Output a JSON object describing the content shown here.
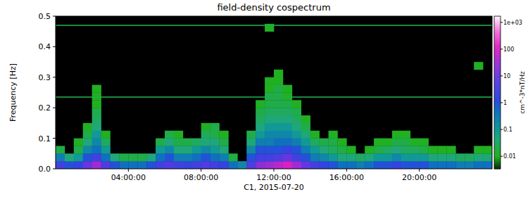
{
  "chart_data": {
    "type": "heatmap",
    "title": "field-density cospectrum",
    "xlabel": "C1, 2015-07-20",
    "ylabel": "Frequency [Hz]",
    "xlim": [
      0,
      24
    ],
    "xticks": [
      {
        "value": 4,
        "label": "04:00:00"
      },
      {
        "value": 8,
        "label": "08:00:00"
      },
      {
        "value": 12,
        "label": "12:00:00"
      },
      {
        "value": 16,
        "label": "16:00:00"
      },
      {
        "value": 20,
        "label": "20:00:00"
      }
    ],
    "ylim": [
      0,
      0.5
    ],
    "yticks": [
      {
        "value": 0,
        "label": "0.0"
      },
      0.1,
      0.2,
      0.3,
      0.4,
      0.5
    ],
    "grid": false,
    "x_edges": [
      0,
      0.5,
      1,
      1.5,
      2,
      2.5,
      3,
      3.5,
      4,
      4.5,
      5,
      5.5,
      6,
      6.5,
      7,
      7.5,
      8,
      8.5,
      9,
      9.5,
      10,
      10.5,
      11,
      11.5,
      12,
      12.5,
      13,
      13.5,
      14,
      14.5,
      15,
      15.5,
      16,
      16.5,
      17,
      17.5,
      18,
      18.5,
      19,
      19.5,
      20,
      20.5,
      21,
      21.5,
      22,
      22.5,
      23,
      23.5,
      24
    ],
    "y_edges": [
      0,
      0.025,
      0.05,
      0.075,
      0.1,
      0.125,
      0.15,
      0.175,
      0.2,
      0.225,
      0.25,
      0.275,
      0.3,
      0.325,
      0.35,
      0.375,
      0.4,
      0.425,
      0.45,
      0.475,
      0.5
    ],
    "cells": [
      [
        3,
        1,
        2,
        10,
        30,
        5,
        1,
        0.5,
        0.5,
        0.5,
        1,
        3,
        5,
        3,
        2,
        3,
        5,
        3,
        2,
        0.5,
        0.2,
        5,
        20,
        30,
        50,
        100,
        30,
        10,
        3,
        2,
        1,
        0.5,
        0.5,
        0.3,
        0.5,
        1,
        1,
        2,
        1,
        1,
        1,
        0.5,
        0.5,
        0.5,
        0.3,
        0.3,
        0.5,
        0.5
      ],
      [
        0.3,
        0.05,
        0.1,
        1,
        3,
        0.5,
        0.05,
        0.02,
        0.02,
        0.02,
        0.05,
        0.5,
        1,
        0.3,
        0.3,
        0.5,
        1,
        0.5,
        0.3,
        0.02,
        null,
        1,
        3,
        3,
        5,
        10,
        3,
        1,
        0.3,
        0.2,
        0.1,
        0.05,
        0.05,
        0.03,
        0.05,
        0.1,
        0.1,
        0.2,
        0.1,
        0.1,
        0.1,
        0.05,
        0.05,
        0.05,
        0.03,
        0.03,
        0.05,
        0.05
      ],
      [
        0.02,
        null,
        0.02,
        0.2,
        0.5,
        0.1,
        null,
        null,
        null,
        null,
        null,
        0.1,
        0.2,
        0.05,
        0.05,
        0.1,
        0.2,
        0.1,
        0.05,
        null,
        null,
        0.2,
        1,
        1,
        1,
        2,
        1,
        0.3,
        0.1,
        0.05,
        0.03,
        0.02,
        0.01,
        null,
        0.01,
        0.02,
        0.03,
        0.05,
        0.03,
        0.03,
        0.02,
        0.01,
        0.01,
        0.01,
        null,
        null,
        0.01,
        0.01
      ],
      [
        null,
        null,
        0.01,
        0.05,
        0.2,
        0.03,
        null,
        null,
        null,
        null,
        null,
        0.02,
        0.05,
        0.02,
        0.02,
        0.03,
        0.05,
        0.05,
        0.02,
        null,
        null,
        0.05,
        0.3,
        0.3,
        0.5,
        0.5,
        0.3,
        0.1,
        0.03,
        0.02,
        0.02,
        0.01,
        null,
        null,
        null,
        0.01,
        0.01,
        0.02,
        0.02,
        0.01,
        0.01,
        null,
        null,
        null,
        null,
        null,
        null,
        null
      ],
      [
        null,
        null,
        null,
        0.02,
        0.1,
        0.01,
        null,
        null,
        null,
        null,
        null,
        null,
        0.02,
        0.01,
        null,
        null,
        0.03,
        0.02,
        0.01,
        null,
        null,
        0.02,
        0.1,
        0.2,
        0.2,
        0.2,
        0.1,
        0.05,
        0.01,
        null,
        0.01,
        null,
        null,
        null,
        null,
        null,
        null,
        0.01,
        0.01,
        null,
        null,
        null,
        null,
        null,
        null,
        null,
        null,
        null
      ],
      [
        null,
        null,
        null,
        0.01,
        0.05,
        null,
        null,
        null,
        null,
        null,
        null,
        null,
        null,
        null,
        null,
        null,
        0.01,
        0.02,
        null,
        null,
        null,
        null,
        0.05,
        0.1,
        0.1,
        0.1,
        0.05,
        0.02,
        null,
        null,
        null,
        null,
        null,
        null,
        null,
        null,
        null,
        null,
        null,
        null,
        null,
        null,
        null,
        null,
        null,
        null,
        null,
        null
      ],
      [
        null,
        null,
        null,
        null,
        0.03,
        null,
        null,
        null,
        null,
        null,
        null,
        null,
        null,
        null,
        null,
        null,
        null,
        null,
        null,
        null,
        null,
        null,
        0.03,
        0.05,
        0.05,
        0.05,
        0.03,
        0.01,
        null,
        null,
        null,
        null,
        null,
        null,
        null,
        null,
        null,
        null,
        null,
        null,
        null,
        null,
        null,
        null,
        null,
        null,
        null,
        null
      ],
      [
        null,
        null,
        null,
        null,
        0.02,
        null,
        null,
        null,
        null,
        null,
        null,
        null,
        null,
        null,
        null,
        null,
        null,
        null,
        null,
        null,
        null,
        null,
        0.02,
        0.03,
        0.03,
        0.03,
        0.02,
        null,
        null,
        null,
        null,
        null,
        null,
        null,
        null,
        null,
        null,
        null,
        null,
        null,
        null,
        null,
        null,
        null,
        null,
        null,
        null,
        null
      ],
      [
        null,
        null,
        null,
        null,
        0.01,
        null,
        null,
        null,
        null,
        null,
        null,
        null,
        null,
        null,
        null,
        null,
        null,
        null,
        null,
        null,
        null,
        null,
        0.01,
        0.02,
        0.02,
        0.02,
        0.01,
        null,
        null,
        null,
        null,
        null,
        null,
        null,
        null,
        null,
        null,
        null,
        null,
        null,
        null,
        null,
        null,
        null,
        null,
        null,
        null,
        null
      ],
      [
        null,
        null,
        null,
        null,
        0.01,
        null,
        null,
        null,
        null,
        null,
        null,
        null,
        null,
        null,
        null,
        null,
        null,
        null,
        null,
        null,
        null,
        null,
        null,
        0.02,
        0.02,
        0.01,
        null,
        null,
        null,
        null,
        null,
        null,
        null,
        null,
        null,
        null,
        null,
        null,
        null,
        null,
        null,
        null,
        null,
        null,
        null,
        null,
        null,
        null
      ],
      [
        null,
        null,
        null,
        null,
        0.01,
        null,
        null,
        null,
        null,
        null,
        null,
        null,
        null,
        null,
        null,
        null,
        null,
        null,
        null,
        null,
        null,
        null,
        null,
        0.01,
        0.02,
        0.01,
        null,
        null,
        null,
        null,
        null,
        null,
        null,
        null,
        null,
        null,
        null,
        null,
        null,
        null,
        null,
        null,
        null,
        null,
        null,
        null,
        null,
        null
      ],
      [
        null,
        null,
        null,
        null,
        null,
        null,
        null,
        null,
        null,
        null,
        null,
        null,
        null,
        null,
        null,
        null,
        null,
        null,
        null,
        null,
        null,
        null,
        null,
        0.01,
        0.01,
        null,
        null,
        null,
        null,
        null,
        null,
        null,
        null,
        null,
        null,
        null,
        null,
        null,
        null,
        null,
        null,
        null,
        null,
        null,
        null,
        null,
        null,
        null
      ],
      [
        null,
        null,
        null,
        null,
        null,
        null,
        null,
        null,
        null,
        null,
        null,
        null,
        null,
        null,
        null,
        null,
        null,
        null,
        null,
        null,
        null,
        null,
        null,
        null,
        0.01,
        null,
        null,
        null,
        null,
        null,
        null,
        null,
        null,
        null,
        null,
        null,
        null,
        null,
        null,
        null,
        null,
        null,
        null,
        null,
        null,
        null,
        null,
        null
      ],
      [
        null,
        null,
        null,
        null,
        null,
        null,
        null,
        null,
        null,
        null,
        null,
        null,
        null,
        null,
        null,
        null,
        null,
        null,
        null,
        null,
        null,
        null,
        null,
        null,
        null,
        null,
        null,
        null,
        null,
        null,
        null,
        null,
        null,
        null,
        null,
        null,
        null,
        null,
        null,
        null,
        null,
        null,
        null,
        null,
        null,
        null,
        0.01,
        null
      ],
      [
        null,
        null,
        null,
        null,
        null,
        null,
        null,
        null,
        null,
        null,
        null,
        null,
        null,
        null,
        null,
        null,
        null,
        null,
        null,
        null,
        null,
        null,
        null,
        null,
        null,
        null,
        null,
        null,
        null,
        null,
        null,
        null,
        null,
        null,
        null,
        null,
        null,
        null,
        null,
        null,
        null,
        null,
        null,
        null,
        null,
        null,
        null,
        null
      ],
      [
        null,
        null,
        null,
        null,
        null,
        null,
        null,
        null,
        null,
        null,
        null,
        null,
        null,
        null,
        null,
        null,
        null,
        null,
        null,
        null,
        null,
        null,
        null,
        null,
        null,
        null,
        null,
        null,
        null,
        null,
        null,
        null,
        null,
        null,
        null,
        null,
        null,
        null,
        null,
        null,
        null,
        null,
        null,
        null,
        null,
        null,
        null,
        null
      ],
      [
        null,
        null,
        null,
        null,
        null,
        null,
        null,
        null,
        null,
        null,
        null,
        null,
        null,
        null,
        null,
        null,
        null,
        null,
        null,
        null,
        null,
        null,
        null,
        null,
        null,
        null,
        null,
        null,
        null,
        null,
        null,
        null,
        null,
        null,
        null,
        null,
        null,
        null,
        null,
        null,
        null,
        null,
        null,
        null,
        null,
        null,
        null,
        null
      ],
      [
        null,
        null,
        null,
        null,
        null,
        null,
        null,
        null,
        null,
        null,
        null,
        null,
        null,
        null,
        null,
        null,
        null,
        null,
        null,
        null,
        null,
        null,
        null,
        null,
        null,
        null,
        null,
        null,
        null,
        null,
        null,
        null,
        null,
        null,
        null,
        null,
        null,
        null,
        null,
        null,
        null,
        null,
        null,
        null,
        null,
        null,
        null,
        null
      ],
      [
        null,
        null,
        null,
        null,
        null,
        null,
        null,
        null,
        null,
        null,
        null,
        null,
        null,
        null,
        null,
        null,
        null,
        null,
        null,
        null,
        null,
        null,
        null,
        0.01,
        null,
        null,
        null,
        null,
        null,
        null,
        null,
        null,
        null,
        null,
        null,
        null,
        null,
        null,
        null,
        null,
        null,
        null,
        null,
        null,
        null,
        null,
        null,
        null
      ],
      [
        null,
        null,
        null,
        null,
        null,
        null,
        null,
        null,
        null,
        null,
        null,
        null,
        null,
        null,
        null,
        null,
        null,
        null,
        null,
        null,
        null,
        null,
        null,
        null,
        null,
        null,
        null,
        null,
        null,
        null,
        null,
        null,
        null,
        null,
        null,
        null,
        null,
        null,
        null,
        null,
        null,
        null,
        null,
        null,
        null,
        null,
        null,
        null
      ]
    ],
    "lines": [
      {
        "frequency": 0.235,
        "value": 0.02
      },
      {
        "frequency": 0.47,
        "value": 0.02
      }
    ],
    "colorbar_lim": [
      0.0034,
      1700
    ],
    "colorbar_ticks": [
      {
        "value": 1000,
        "label": "1e+03"
      },
      100,
      10,
      1,
      0.1,
      0.01
    ],
    "colorbar_label": "cm^-3*nT/Hz"
  }
}
